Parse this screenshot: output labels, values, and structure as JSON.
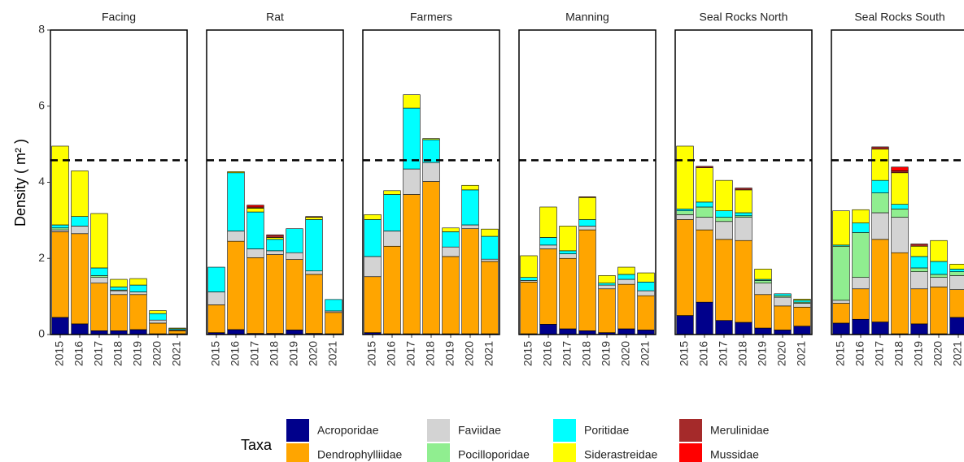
{
  "chart_data": [
    {
      "type": "bar",
      "stacked": true,
      "title": "Facing",
      "y_label": "Density ( m² )",
      "legend_title": "Taxa",
      "legend": "bottom",
      "categories": [
        "2015",
        "2016",
        "2017",
        "2018",
        "2019",
        "2020",
        "2021"
      ],
      "ylim": [
        0,
        8
      ],
      "yticks": [
        0,
        2,
        4,
        6,
        8
      ],
      "reference_line": 4.58,
      "series": [
        {
          "name": "Acroporidae",
          "color": "#00008b",
          "values": [
            0.45,
            0.28,
            0.1,
            0.1,
            0.13,
            0.02,
            0.02
          ]
        },
        {
          "name": "Dendrophylliidae",
          "color": "#ffa500",
          "values": [
            2.25,
            2.37,
            1.25,
            0.95,
            0.92,
            0.28,
            0.08
          ]
        },
        {
          "name": "Faviidae",
          "color": "#d3d3d3",
          "values": [
            0.05,
            0.2,
            0.15,
            0.1,
            0.07,
            0.08,
            0.02
          ]
        },
        {
          "name": "Pocilloporidae",
          "color": "#90ee90",
          "values": [
            0.05,
            0,
            0.05,
            0.02,
            0,
            0,
            0
          ]
        },
        {
          "name": "Poritidae",
          "color": "#00ffff",
          "values": [
            0.08,
            0.25,
            0.2,
            0.08,
            0.18,
            0.17,
            0.03
          ]
        },
        {
          "name": "Siderastreidae",
          "color": "#ffff00",
          "values": [
            2.07,
            1.2,
            1.43,
            0.2,
            0.17,
            0.08,
            0.02
          ]
        },
        {
          "name": "Merulinidae",
          "color": "#a52a2a",
          "values": [
            0,
            0,
            0,
            0,
            0,
            0,
            0
          ]
        },
        {
          "name": "Mussidae",
          "color": "#ff0000",
          "values": [
            0,
            0,
            0,
            0,
            0,
            0,
            0
          ]
        }
      ]
    },
    {
      "type": "bar",
      "stacked": true,
      "title": "Rat",
      "categories": [
        "2015",
        "2016",
        "2017",
        "2018",
        "2019",
        "2020",
        "2021"
      ],
      "ylim": [
        0,
        8
      ],
      "reference_line": 4.58,
      "series": [
        {
          "name": "Acroporidae",
          "color": "#00008b",
          "values": [
            0.05,
            0.13,
            0.03,
            0.03,
            0.12,
            0.03,
            0.02
          ]
        },
        {
          "name": "Dendrophylliidae",
          "color": "#ffa500",
          "values": [
            0.73,
            2.32,
            1.99,
            2.07,
            1.85,
            1.55,
            0.56
          ]
        },
        {
          "name": "Faviidae",
          "color": "#d3d3d3",
          "values": [
            0.34,
            0.27,
            0.23,
            0.1,
            0.18,
            0.09,
            0.04
          ]
        },
        {
          "name": "Pocilloporidae",
          "color": "#90ee90",
          "values": [
            0,
            0,
            0,
            0,
            0,
            0,
            0
          ]
        },
        {
          "name": "Poritidae",
          "color": "#00ffff",
          "values": [
            0.65,
            1.53,
            0.97,
            0.3,
            0.63,
            1.35,
            0.3
          ]
        },
        {
          "name": "Siderastreidae",
          "color": "#ffff00",
          "values": [
            0,
            0.03,
            0.1,
            0.05,
            0,
            0.06,
            0
          ]
        },
        {
          "name": "Merulinidae",
          "color": "#a52a2a",
          "values": [
            0,
            0,
            0.03,
            0.07,
            0,
            0.02,
            0
          ]
        },
        {
          "name": "Mussidae",
          "color": "#ff0000",
          "values": [
            0,
            0,
            0.05,
            0,
            0,
            0,
            0
          ]
        }
      ]
    },
    {
      "type": "bar",
      "stacked": true,
      "title": "Farmers",
      "categories": [
        "2015",
        "2016",
        "2017",
        "2018",
        "2019",
        "2020",
        "2021"
      ],
      "ylim": [
        0,
        8
      ],
      "reference_line": 4.58,
      "series": [
        {
          "name": "Acroporidae",
          "color": "#00008b",
          "values": [
            0.05,
            0.02,
            0.02,
            0.02,
            0.02,
            0.02,
            0.02
          ]
        },
        {
          "name": "Dendrophylliidae",
          "color": "#ffa500",
          "values": [
            1.47,
            2.3,
            3.66,
            4.0,
            2.03,
            2.76,
            1.9
          ]
        },
        {
          "name": "Faviidae",
          "color": "#d3d3d3",
          "values": [
            0.53,
            0.4,
            0.67,
            0.5,
            0.25,
            0.1,
            0.06
          ]
        },
        {
          "name": "Pocilloporidae",
          "color": "#90ee90",
          "values": [
            0,
            0,
            0,
            0,
            0,
            0,
            0
          ]
        },
        {
          "name": "Poritidae",
          "color": "#00ffff",
          "values": [
            0.97,
            0.96,
            1.6,
            0.6,
            0.4,
            0.92,
            0.6
          ]
        },
        {
          "name": "Siderastreidae",
          "color": "#ffff00",
          "values": [
            0.13,
            0.1,
            0.35,
            0.03,
            0.1,
            0.12,
            0.19
          ]
        },
        {
          "name": "Merulinidae",
          "color": "#a52a2a",
          "values": [
            0,
            0,
            0,
            0,
            0,
            0,
            0
          ]
        },
        {
          "name": "Mussidae",
          "color": "#ff0000",
          "values": [
            0,
            0,
            0,
            0,
            0,
            0,
            0
          ]
        }
      ]
    },
    {
      "type": "bar",
      "stacked": true,
      "title": "Manning",
      "categories": [
        "2015",
        "2016",
        "2017",
        "2018",
        "2019",
        "2020",
        "2021"
      ],
      "ylim": [
        0,
        8
      ],
      "reference_line": 4.58,
      "series": [
        {
          "name": "Acroporidae",
          "color": "#00008b",
          "values": [
            0.02,
            0.27,
            0.15,
            0.1,
            0.05,
            0.15,
            0.12
          ]
        },
        {
          "name": "Dendrophylliidae",
          "color": "#ffa500",
          "values": [
            1.36,
            1.98,
            1.85,
            2.65,
            1.15,
            1.17,
            0.9
          ]
        },
        {
          "name": "Faviidae",
          "color": "#d3d3d3",
          "values": [
            0.04,
            0.1,
            0.12,
            0.1,
            0.1,
            0.13,
            0.13
          ]
        },
        {
          "name": "Pocilloporidae",
          "color": "#90ee90",
          "values": [
            0,
            0,
            0,
            0,
            0,
            0,
            0
          ]
        },
        {
          "name": "Poritidae",
          "color": "#00ffff",
          "values": [
            0.08,
            0.2,
            0.08,
            0.17,
            0.05,
            0.13,
            0.23
          ]
        },
        {
          "name": "Siderastreidae",
          "color": "#ffff00",
          "values": [
            0.57,
            0.8,
            0.65,
            0.58,
            0.2,
            0.19,
            0.24
          ]
        },
        {
          "name": "Merulinidae",
          "color": "#a52a2a",
          "values": [
            0,
            0,
            0,
            0.02,
            0,
            0,
            0
          ]
        },
        {
          "name": "Mussidae",
          "color": "#ff0000",
          "values": [
            0,
            0,
            0,
            0,
            0,
            0,
            0
          ]
        }
      ]
    },
    {
      "type": "bar",
      "stacked": true,
      "title": "Seal Rocks North",
      "categories": [
        "2015",
        "2016",
        "2017",
        "2018",
        "2019",
        "2020",
        "2021"
      ],
      "ylim": [
        0,
        8
      ],
      "reference_line": 4.58,
      "series": [
        {
          "name": "Acroporidae",
          "color": "#00008b",
          "values": [
            0.5,
            0.85,
            0.37,
            0.32,
            0.17,
            0.12,
            0.22
          ]
        },
        {
          "name": "Dendrophylliidae",
          "color": "#ffa500",
          "values": [
            2.52,
            1.9,
            2.13,
            2.15,
            0.88,
            0.63,
            0.5
          ]
        },
        {
          "name": "Faviidae",
          "color": "#d3d3d3",
          "values": [
            0.13,
            0.33,
            0.47,
            0.61,
            0.3,
            0.23,
            0.1
          ]
        },
        {
          "name": "Pocilloporidae",
          "color": "#90ee90",
          "values": [
            0.1,
            0.27,
            0.11,
            0.04,
            0.07,
            0.04,
            0.03
          ]
        },
        {
          "name": "Poritidae",
          "color": "#00ffff",
          "values": [
            0.05,
            0.13,
            0.17,
            0.08,
            0.03,
            0.05,
            0.05
          ]
        },
        {
          "name": "Siderastreidae",
          "color": "#ffff00",
          "values": [
            1.65,
            0.9,
            0.8,
            0.6,
            0.27,
            0,
            0.03
          ]
        },
        {
          "name": "Merulinidae",
          "color": "#a52a2a",
          "values": [
            0,
            0.04,
            0,
            0.05,
            0,
            0,
            0
          ]
        },
        {
          "name": "Mussidae",
          "color": "#ff0000",
          "values": [
            0,
            0,
            0,
            0,
            0,
            0,
            0
          ]
        }
      ]
    },
    {
      "type": "bar",
      "stacked": true,
      "title": "Seal Rocks South",
      "categories": [
        "2015",
        "2016",
        "2017",
        "2018",
        "2019",
        "2020",
        "2021"
      ],
      "ylim": [
        0,
        8
      ],
      "reference_line": 4.58,
      "series": [
        {
          "name": "Acroporidae",
          "color": "#00008b",
          "values": [
            0.3,
            0.4,
            0.33,
            0.02,
            0.28,
            0.02,
            0.45
          ]
        },
        {
          "name": "Dendrophylliidae",
          "color": "#ffa500",
          "values": [
            0.52,
            0.8,
            2.17,
            2.13,
            0.92,
            1.23,
            0.73
          ]
        },
        {
          "name": "Faviidae",
          "color": "#d3d3d3",
          "values": [
            0.08,
            0.3,
            0.7,
            0.93,
            0.45,
            0.25,
            0.37
          ]
        },
        {
          "name": "Pocilloporidae",
          "color": "#90ee90",
          "values": [
            1.42,
            1.18,
            0.52,
            0.22,
            0.1,
            0.08,
            0.1
          ]
        },
        {
          "name": "Poritidae",
          "color": "#00ffff",
          "values": [
            0.03,
            0.25,
            0.33,
            0.12,
            0.3,
            0.34,
            0.07
          ]
        },
        {
          "name": "Siderastreidae",
          "color": "#ffff00",
          "values": [
            0.9,
            0.35,
            0.82,
            0.83,
            0.27,
            0.55,
            0.13
          ]
        },
        {
          "name": "Merulinidae",
          "color": "#a52a2a",
          "values": [
            0,
            0,
            0.06,
            0.05,
            0.06,
            0,
            0
          ]
        },
        {
          "name": "Mussidae",
          "color": "#ff0000",
          "values": [
            0,
            0,
            0,
            0.1,
            0,
            0,
            0
          ]
        }
      ]
    }
  ]
}
